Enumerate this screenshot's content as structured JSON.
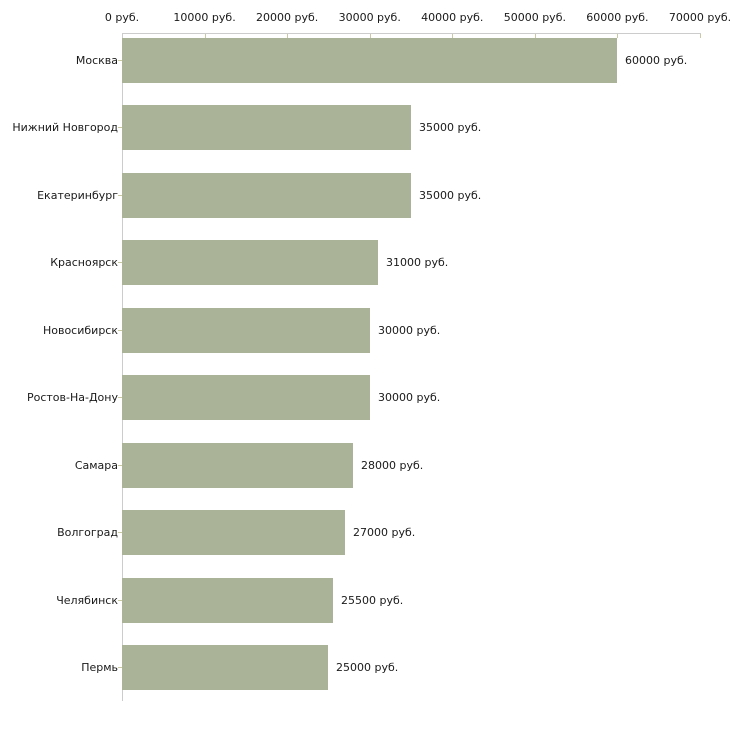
{
  "chart_data": {
    "type": "bar",
    "orientation": "horizontal",
    "title": "",
    "xlabel": "",
    "ylabel": "",
    "unit": "руб.",
    "categories": [
      "Москва",
      "Нижний Новгород",
      "Екатеринбург",
      "Красноярск",
      "Новосибирск",
      "Ростов-На-Дону",
      "Самара",
      "Волгоград",
      "Челябинск",
      "Пермь"
    ],
    "values": [
      60000,
      35000,
      35000,
      31000,
      30000,
      30000,
      28000,
      27000,
      25500,
      25000
    ],
    "value_labels": [
      "60000 руб.",
      "35000 руб.",
      "35000 руб.",
      "31000 руб.",
      "30000 руб.",
      "30000 руб.",
      "28000 руб.",
      "27000 руб.",
      "25500 руб.",
      "25000 руб."
    ],
    "xlim": [
      0,
      70000
    ],
    "x_ticks": [
      0,
      10000,
      20000,
      30000,
      40000,
      50000,
      60000,
      70000
    ],
    "x_tick_labels": [
      "0 руб.",
      "10000 руб.",
      "20000 руб.",
      "30000 руб.",
      "40000 руб.",
      "50000 руб.",
      "60000 руб.",
      "70000 руб."
    ],
    "grid": false,
    "legend": false,
    "axis_position": "top",
    "colors": {
      "bar": "#aab398",
      "axis_line": "#cccccc",
      "tick_mark": "#c9c9a3",
      "text": "#1a1a1a",
      "background": "#ffffff"
    }
  }
}
